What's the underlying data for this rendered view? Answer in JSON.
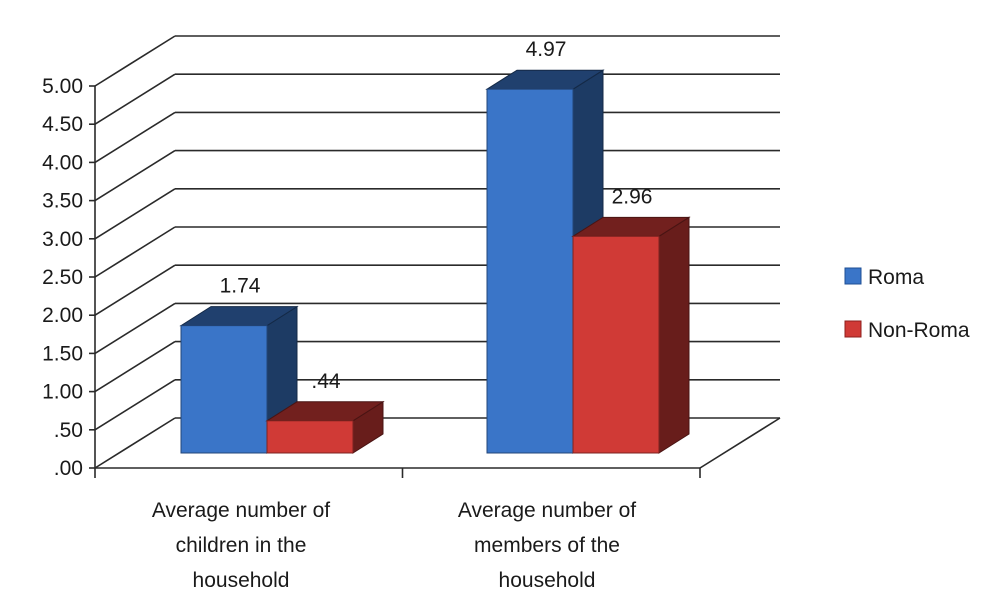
{
  "chart_data": {
    "type": "bar",
    "style": "3d-clustered-column",
    "categories": [
      [
        "Average number of",
        "children in the",
        "household"
      ],
      [
        "Average number of",
        "members of the",
        "household"
      ]
    ],
    "series": [
      {
        "name": "Roma",
        "values": [
          1.74,
          4.97
        ],
        "labels": [
          "1.74",
          "4.97"
        ],
        "color": "#3a75c8"
      },
      {
        "name": "Non-Roma",
        "values": [
          0.44,
          2.96
        ],
        "labels": [
          ".44",
          "2.96"
        ],
        "color": "#d03a36"
      }
    ],
    "y_ticks": [
      {
        "value": 0.0,
        "label": ".00"
      },
      {
        "value": 0.5,
        "label": ".50"
      },
      {
        "value": 1.0,
        "label": "1.00"
      },
      {
        "value": 1.5,
        "label": "1.50"
      },
      {
        "value": 2.0,
        "label": "2.00"
      },
      {
        "value": 2.5,
        "label": "2.50"
      },
      {
        "value": 3.0,
        "label": "3.00"
      },
      {
        "value": 3.5,
        "label": "3.50"
      },
      {
        "value": 4.0,
        "label": "4.00"
      },
      {
        "value": 4.5,
        "label": "4.50"
      },
      {
        "value": 5.0,
        "label": "5.00"
      }
    ],
    "ylim": [
      0,
      5
    ],
    "grid": true,
    "legend_position": "right"
  }
}
